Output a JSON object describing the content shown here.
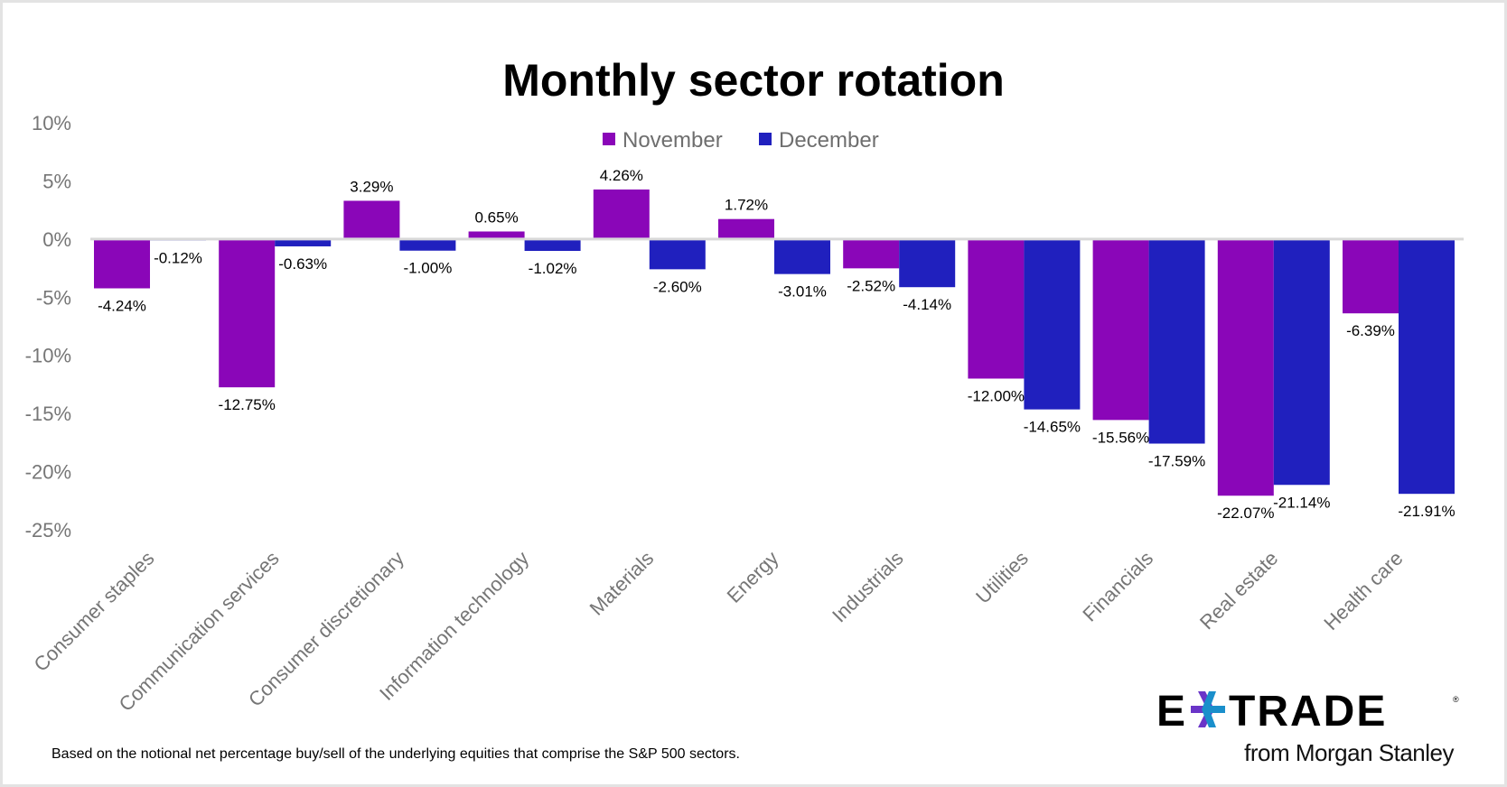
{
  "chart_data": {
    "type": "bar",
    "title": "Monthly sector rotation",
    "categories": [
      "Consumer staples",
      "Communication services",
      "Consumer discretionary",
      "Information technology",
      "Materials",
      "Energy",
      "Industrials",
      "Utilities",
      "Financials",
      "Real estate",
      "Health care"
    ],
    "series": [
      {
        "name": "November",
        "color": "#8A06B8",
        "values": [
          -4.24,
          -12.75,
          3.29,
          0.65,
          4.26,
          1.72,
          -2.52,
          -12.0,
          -15.56,
          -22.07,
          -6.39
        ],
        "labels": [
          "-4.24%",
          "-12.75%",
          "3.29%",
          "0.65%",
          "4.26%",
          "1.72%",
          "-2.52%",
          "-12.00%",
          "-15.56%",
          "-22.07%",
          "-6.39%"
        ]
      },
      {
        "name": "December",
        "color": "#2020BE",
        "values": [
          -0.12,
          -0.63,
          -1.0,
          -1.02,
          -2.6,
          -3.01,
          -4.14,
          -14.65,
          -17.59,
          -21.14,
          -21.91
        ],
        "labels": [
          "-0.12%",
          "-0.63%",
          "-1.00%",
          "-1.02%",
          "-2.60%",
          "-3.01%",
          "-4.14%",
          "-14.65%",
          "-17.59%",
          "-21.14%",
          "-21.91%"
        ]
      }
    ],
    "ylim": [
      -25,
      10
    ],
    "yticks": [
      10,
      5,
      0,
      -5,
      -10,
      -15,
      -20,
      -25
    ],
    "ytick_labels": [
      "10%",
      "5%",
      "0%",
      "-5%",
      "-10%",
      "-15%",
      "-20%",
      "-25%"
    ],
    "xlabel": "",
    "ylabel": "",
    "legend": "top-center",
    "grid": false
  },
  "footnote": "Based on the notional net percentage buy/sell of the underlying equities that comprise the S&P 500 sectors.",
  "logo": {
    "text": "E*TRADE",
    "sub": "from Morgan Stanley"
  }
}
